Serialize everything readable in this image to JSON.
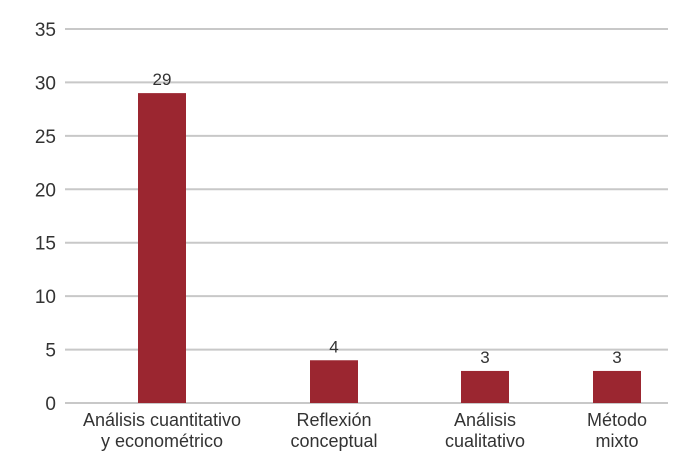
{
  "chart_data": {
    "type": "bar",
    "categories": [
      [
        "Análisis cuantitativo",
        "y econométrico"
      ],
      [
        "Reflexión",
        "conceptual"
      ],
      [
        "Análisis",
        "cualitativo"
      ],
      [
        "Método",
        "mixto"
      ]
    ],
    "values": [
      29,
      4,
      3,
      3
    ],
    "data_labels": [
      "29",
      "4",
      "3",
      "3"
    ],
    "ylim": [
      0,
      35
    ],
    "yticks": [
      0,
      5,
      10,
      15,
      20,
      25,
      30,
      35
    ],
    "grid": true,
    "colors": {
      "bar": "#9b2630",
      "grid": "#c8c8c8",
      "text": "#333333"
    }
  }
}
